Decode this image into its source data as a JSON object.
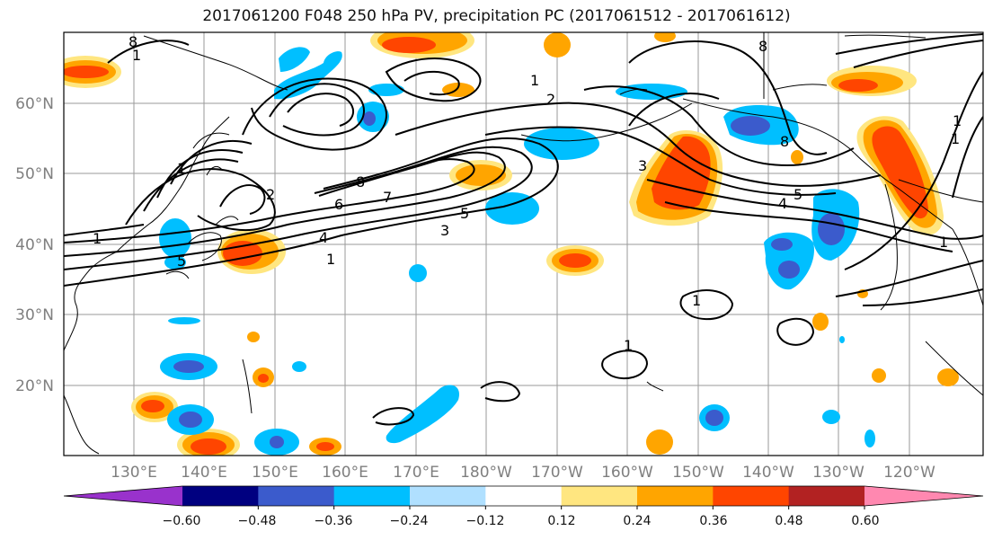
{
  "title": "2017061200 F048 250 hPa PV, precipitation PC (2017061512 - 2017061612)",
  "lat_labels": [
    "60°N",
    "50°N",
    "40°N",
    "30°N",
    "20°N"
  ],
  "lon_labels": [
    "130°E",
    "140°E",
    "150°E",
    "160°E",
    "170°E",
    "180°W",
    "170°W",
    "160°W",
    "150°W",
    "140°W",
    "130°W",
    "120°W"
  ],
  "colorbar": {
    "colors": [
      "#9932cc",
      "#000080",
      "#3b5bcc",
      "#00bfff",
      "#b0e0ff",
      "#ffffff",
      "#ffe680",
      "#ffa500",
      "#ff4500",
      "#b22222",
      "#ff88b0"
    ],
    "ticks": [
      "−0.60",
      "−0.48",
      "−0.36",
      "−0.24",
      "−0.12",
      "0.12",
      "0.24",
      "0.36",
      "0.48",
      "0.60"
    ]
  },
  "contour_labels": [
    "8",
    "1",
    "8",
    "6",
    "7",
    "4",
    "1",
    "1",
    "3",
    "5",
    "2",
    "5",
    "1",
    "2",
    "1",
    "8",
    "3",
    "4",
    "5",
    "1",
    "1",
    "1",
    "1",
    "1",
    "8"
  ]
}
